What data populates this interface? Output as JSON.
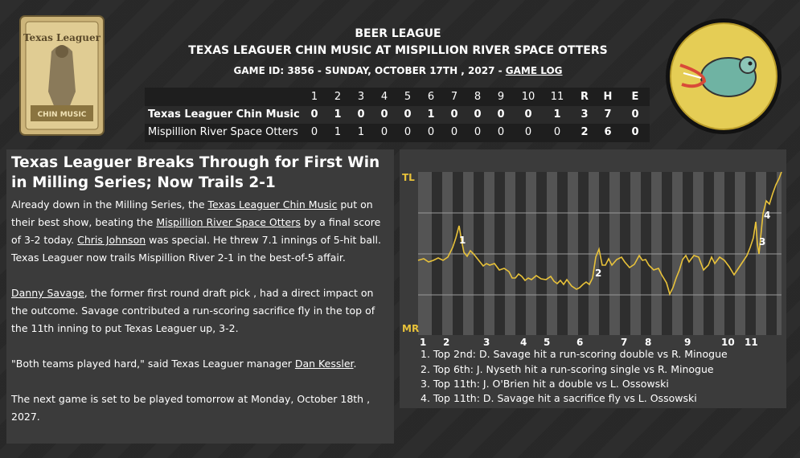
{
  "header": {
    "league": "BEER LEAGUE",
    "matchup": "TEXAS LEAGUER CHIN MUSIC AT MISPILLION RIVER SPACE OTTERS",
    "game_info": "GAME ID: 3856 - SUNDAY, OCTOBER 17TH , 2027 - ",
    "game_log_link": "GAME LOG"
  },
  "left_logo": {
    "text_top": "Texas Leaguer",
    "text_bottom": "CHIN MUSIC"
  },
  "linescore": {
    "columns": [
      "1",
      "2",
      "3",
      "4",
      "5",
      "6",
      "7",
      "8",
      "9",
      "10",
      "11",
      "R",
      "H",
      "E"
    ],
    "teams": [
      {
        "name": "Texas Leaguer Chin Music",
        "scores": [
          "0",
          "1",
          "0",
          "0",
          "0",
          "1",
          "0",
          "0",
          "0",
          "0",
          "1",
          "3",
          "7",
          "0"
        ]
      },
      {
        "name": "Mispillion River Space Otters",
        "scores": [
          "0",
          "1",
          "1",
          "0",
          "0",
          "0",
          "0",
          "0",
          "0",
          "0",
          "0",
          "2",
          "6",
          "0"
        ]
      }
    ]
  },
  "article": {
    "headline": "Texas Leaguer Breaks Through for First Win in Milling Series; Now Trails 2-1",
    "p1_a": "Already down in the Milling Series, the ",
    "p1_link1": "Texas Leaguer Chin Music",
    "p1_b": " put on their best show, beating the ",
    "p1_link2": "Mispillion River Space Otters",
    "p1_c": " by a final score of 3-2 today. ",
    "p1_link3": "Chris Johnson",
    "p1_d": " was special. He threw 7.1 innings of 5-hit ball. Texas Leaguer now trails Mispillion River 2-1 in the best-of-5 affair.",
    "p2_link": "Danny Savage",
    "p2_a": ", the former first round draft pick , had a direct impact on the outcome. Savage contributed a run-scoring sacrifice fly in the top of the 11th inning to put Texas Leaguer up, 3-2.",
    "p3_a": "\"Both teams played hard,\" said Texas Leaguer manager ",
    "p3_link": "Dan Kessler",
    "p3_b": ".",
    "p4": "The next game is set to be played tomorrow at Monday, October 18th , 2027."
  },
  "win_prob": {
    "top_label": "TL",
    "bottom_label": "MR",
    "innings": [
      "1",
      "2",
      "3",
      "4",
      "5",
      "6",
      "7",
      "8",
      "9",
      "10",
      "11"
    ],
    "markers": [
      "1",
      "2",
      "3",
      "4"
    ],
    "events": [
      "1. Top 2nd: D. Savage hit a run-scoring double vs R. Minogue",
      "2. Top 6th: J. Nyseth hit a run-scoring single vs R. Minogue",
      "3. Top 11th: J. O'Brien hit a double vs L. Ossowski",
      "4. Top 11th: D. Savage hit a sacrifice fly vs L. Ossowski"
    ],
    "line_color": "#e8c23a"
  }
}
